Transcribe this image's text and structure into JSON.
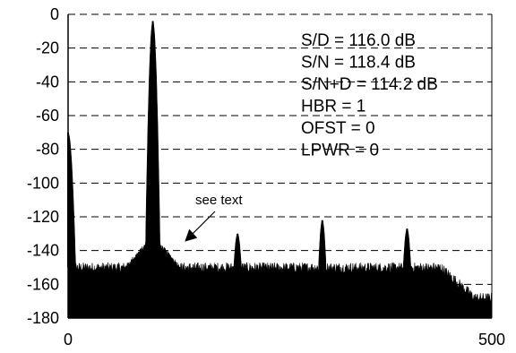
{
  "chart_data": {
    "type": "area",
    "title": "",
    "xlabel": "",
    "ylabel": "",
    "xlim": [
      0,
      500
    ],
    "ylim": [
      -180,
      0
    ],
    "x_ticks": [
      {
        "value": 0,
        "label": "0"
      },
      {
        "value": 500,
        "label": "500"
      }
    ],
    "y_ticks": [
      {
        "value": 0,
        "label": "0"
      },
      {
        "value": -20,
        "label": "-20"
      },
      {
        "value": -40,
        "label": "-40"
      },
      {
        "value": -60,
        "label": "-60"
      },
      {
        "value": -80,
        "label": "-80"
      },
      {
        "value": -100,
        "label": "-100"
      },
      {
        "value": -120,
        "label": "-120"
      },
      {
        "value": -140,
        "label": "-140"
      },
      {
        "value": -160,
        "label": "-160"
      },
      {
        "value": -180,
        "label": "-180"
      }
    ],
    "grid": {
      "horizontal_dashed": true
    },
    "noise_floor": -150,
    "tail_floor": -168,
    "tail_start": 440,
    "peaks": [
      {
        "x": 0,
        "value": -70,
        "width": 3
      },
      {
        "x": 100,
        "value": -4,
        "width": 3
      },
      {
        "x": 200,
        "value": -130,
        "width": 1.5
      },
      {
        "x": 300,
        "value": -122,
        "width": 1.5
      },
      {
        "x": 400,
        "value": -127,
        "width": 1.5
      }
    ],
    "metrics": [
      "S/D = 116.0 dB",
      "S/N = 118.4 dB",
      "S/N+D = 114.2 dB",
      "HBR = 1",
      "OFST = 0",
      "LPWR = 0"
    ],
    "annotation": {
      "text": "see text",
      "target_x": 125,
      "target_y": -140
    },
    "colors": {
      "fill": "#000000",
      "grid": "#000000",
      "background": "#ffffff"
    }
  }
}
